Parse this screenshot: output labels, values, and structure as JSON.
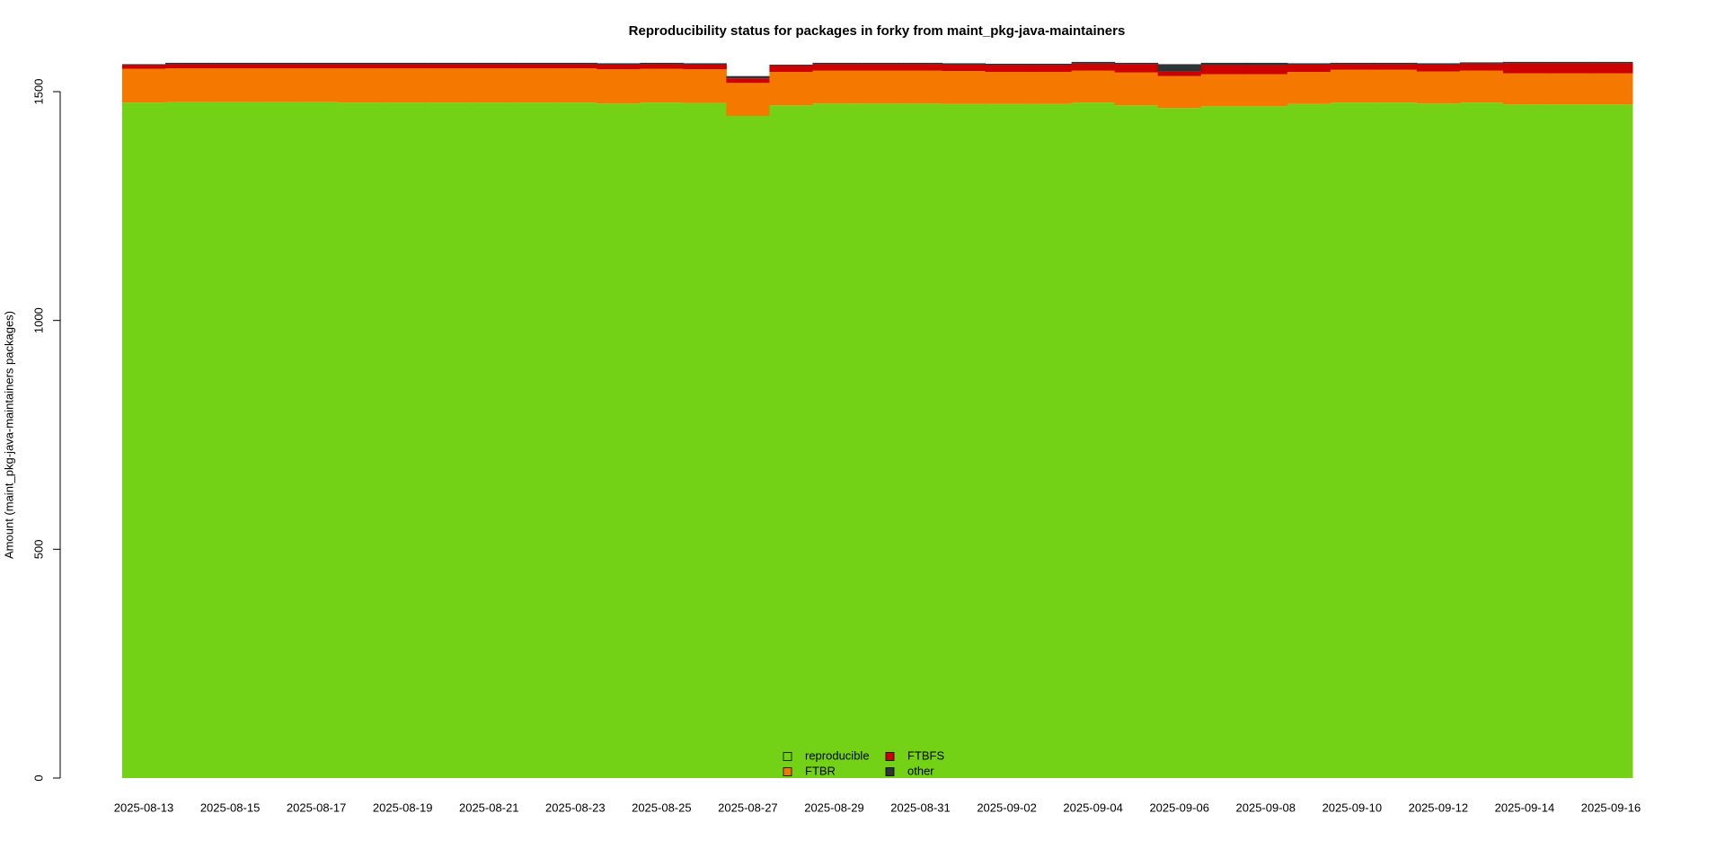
{
  "chart_data": {
    "type": "stacked-bar",
    "title": "Reproducibility status for packages in forky from maint_pkg-java-maintainers",
    "y_label": "Amount (maint_pkg-java-maintainers packages)",
    "categories": [
      "2025-08-13",
      null,
      "2025-08-15",
      null,
      "2025-08-17",
      null,
      "2025-08-19",
      null,
      "2025-08-21",
      null,
      "2025-08-23",
      null,
      "2025-08-25",
      null,
      "2025-08-27",
      null,
      "2025-08-29",
      null,
      "2025-08-31",
      null,
      "2025-09-02",
      null,
      "2025-09-04",
      null,
      "2025-09-06",
      null,
      "2025-09-08",
      null,
      "2025-09-10",
      null,
      "2025-09-12",
      null,
      "2025-09-14",
      null,
      "2025-09-16"
    ],
    "series": [
      {
        "name": "reproducible",
        "color": "#73d216",
        "values": [
          1476,
          1477,
          1477,
          1477,
          1477,
          1476,
          1476,
          1476,
          1476,
          1476,
          1476,
          1474,
          1476,
          1475,
          1447,
          1470,
          1474,
          1474,
          1474,
          1473,
          1473,
          1473,
          1476,
          1470,
          1464,
          1468,
          1468,
          1473,
          1476,
          1476,
          1474,
          1476,
          1472,
          1472,
          1472
        ]
      },
      {
        "name": "FTBR",
        "color": "#f57900",
        "values": [
          74,
          74,
          74,
          74,
          74,
          75,
          75,
          75,
          75,
          75,
          75,
          75,
          74,
          74,
          72,
          73,
          72,
          72,
          72,
          72,
          70,
          70,
          70,
          72,
          70,
          70,
          70,
          70,
          72,
          72,
          70,
          70,
          68,
          68,
          68
        ]
      },
      {
        "name": "FTBFS",
        "color": "#cc0000",
        "values": [
          8,
          9,
          9,
          9,
          9,
          9,
          9,
          9,
          9,
          9,
          9,
          10,
          10,
          10,
          10,
          14,
          14,
          14,
          14,
          14,
          15,
          15,
          15,
          18,
          10,
          20,
          20,
          16,
          12,
          12,
          15,
          15,
          22,
          22,
          22
        ]
      },
      {
        "name": "other",
        "color": "#2e3436",
        "values": [
          2,
          3,
          3,
          3,
          3,
          3,
          3,
          3,
          3,
          3,
          3,
          3,
          3,
          3,
          5,
          2,
          3,
          3,
          3,
          3,
          3,
          3,
          4,
          3,
          16,
          5,
          5,
          3,
          3,
          3,
          3,
          3,
          3,
          3,
          3
        ]
      }
    ],
    "ylim": [
      0,
      1500
    ],
    "yticks": [
      0,
      500,
      1000,
      1500
    ],
    "grid": false,
    "legend": "bottom"
  }
}
